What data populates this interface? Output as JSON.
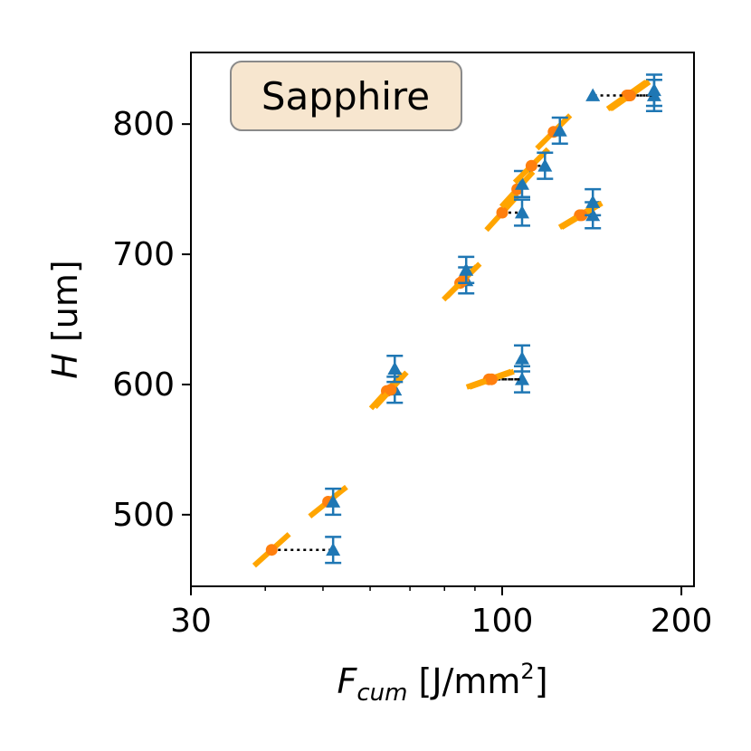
{
  "chart_data": {
    "type": "scatter",
    "xscale": "log",
    "xlim": [
      30,
      210
    ],
    "ylim": [
      445,
      855
    ],
    "xticks": [
      30,
      100,
      200
    ],
    "yticks": [
      500,
      600,
      700,
      800
    ],
    "xlabel": {
      "main": "F",
      "sub": "cum",
      "rest": " [J/mm",
      "sup": "2",
      "end": "]"
    },
    "ylabel": {
      "italic": "H",
      "rest": " [um]"
    },
    "title": "Sapphire",
    "colors": {
      "triangle": "#1f77b4",
      "circle": "#ff7f0e",
      "fit": "#ffa500",
      "link": "#000000",
      "title_bg": "#f7e6cf"
    },
    "points": [
      {
        "fc": 41,
        "fm": 52,
        "h": 473,
        "hm": 473,
        "err": 10,
        "slope": 0.9
      },
      {
        "fc": 51,
        "fm": 52,
        "h": 510,
        "hm": 510,
        "err": 10,
        "slope": 0.8
      },
      {
        "fc": 64,
        "fm": 66,
        "h": 595,
        "hm": 596,
        "err": 10,
        "slope": 1.1
      },
      {
        "fc": 65,
        "fm": 66,
        "h": 596,
        "hm": 612,
        "err": 10,
        "slope": 1.1
      },
      {
        "fc": 85,
        "fm": 87,
        "h": 678,
        "hm": 680,
        "err": 10,
        "slope": 1.0
      },
      {
        "fc": 86,
        "fm": 87,
        "h": 680,
        "hm": 688,
        "err": 10,
        "slope": 1.0
      },
      {
        "fc": 95,
        "fm": 108,
        "h": 604,
        "hm": 604,
        "err": 10,
        "slope": 0.35
      },
      {
        "fc": 96,
        "fm": 108,
        "h": 604,
        "hm": 620,
        "err": 10,
        "slope": 0.35
      },
      {
        "fc": 100,
        "fm": 108,
        "h": 732,
        "hm": 732,
        "err": 10,
        "slope": 1.1
      },
      {
        "fc": 106,
        "fm": 108,
        "h": 750,
        "hm": 754,
        "err": 10,
        "slope": 1.1
      },
      {
        "fc": 112,
        "fm": 118,
        "h": 768,
        "hm": 768,
        "err": 10,
        "slope": 1.0
      },
      {
        "fc": 122,
        "fm": 125,
        "h": 794,
        "hm": 795,
        "err": 10,
        "slope": 1.0
      },
      {
        "fc": 135,
        "fm": 142,
        "h": 730,
        "hm": 730,
        "err": 10,
        "slope": 0.6
      },
      {
        "fc": 136,
        "fm": 142,
        "h": 730,
        "hm": 740,
        "err": 10,
        "slope": 0.6
      },
      {
        "fc": 162,
        "fm": 180,
        "h": 822,
        "hm": 822,
        "err": 12,
        "slope": 0.7
      },
      {
        "fc": 163,
        "fm": 142,
        "h": 822,
        "hm": 822,
        "err": 0,
        "slope": 0.7
      },
      {
        "fc": 164,
        "fm": 180,
        "h": 822,
        "hm": 826,
        "err": 12,
        "slope": 0.7
      }
    ]
  }
}
